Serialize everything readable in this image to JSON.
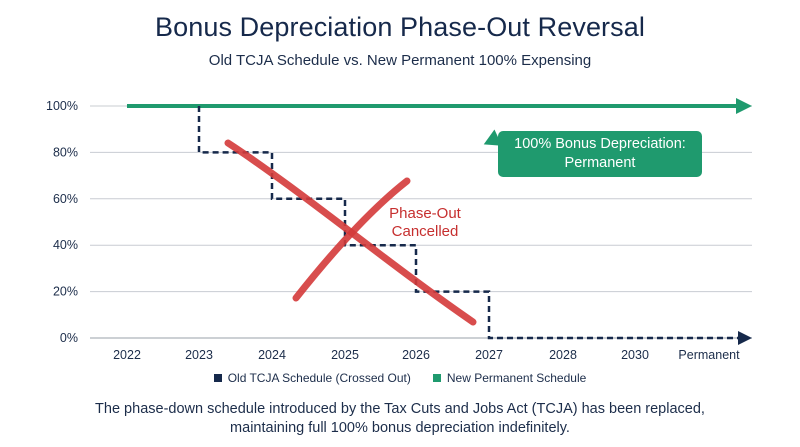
{
  "title": "Bonus Depreciation Phase-Out Reversal",
  "subtitle": "Old TCJA Schedule vs. New Permanent 100% Expensing",
  "caption_lines": [
    "The phase-down schedule introduced by the Tax Cuts and Jobs Act (TCJA) has been replaced,",
    "maintaining full 100% bonus depreciation indefinitely."
  ],
  "callout": {
    "line1": "100% Bonus Depreciation:",
    "line2": "Permanent"
  },
  "annotation": {
    "line1": "Phase-Out",
    "line2": "Cancelled"
  },
  "legend": {
    "old_label": "Old TCJA Schedule (Crossed Out)",
    "new_label": "New Permanent Schedule"
  },
  "colors": {
    "old": "#16294b",
    "new": "#1f9a6e",
    "cross": "#d43a3a",
    "grid": "#c8ccd2",
    "text": "#1c2d4a"
  },
  "chart_data": {
    "type": "line",
    "categories": [
      "2022",
      "2023",
      "2024",
      "2025",
      "2026",
      "2027",
      "2028",
      "2030",
      "Permanent"
    ],
    "y_ticks": [
      "100%",
      "80%",
      "60%",
      "40%",
      "20%",
      "0%"
    ],
    "y_tick_values": [
      100,
      80,
      60,
      40,
      20,
      0
    ],
    "ylim": [
      0,
      100
    ],
    "grid": true,
    "legend_position": "bottom",
    "series": [
      {
        "name": "Old TCJA Schedule (Crossed Out)",
        "style": "dashed-step",
        "values": [
          100,
          80,
          60,
          40,
          20,
          0,
          0,
          0,
          0
        ]
      },
      {
        "name": "New Permanent Schedule",
        "style": "solid-arrow",
        "values": [
          100,
          100,
          100,
          100,
          100,
          100,
          100,
          100,
          100
        ]
      }
    ]
  }
}
